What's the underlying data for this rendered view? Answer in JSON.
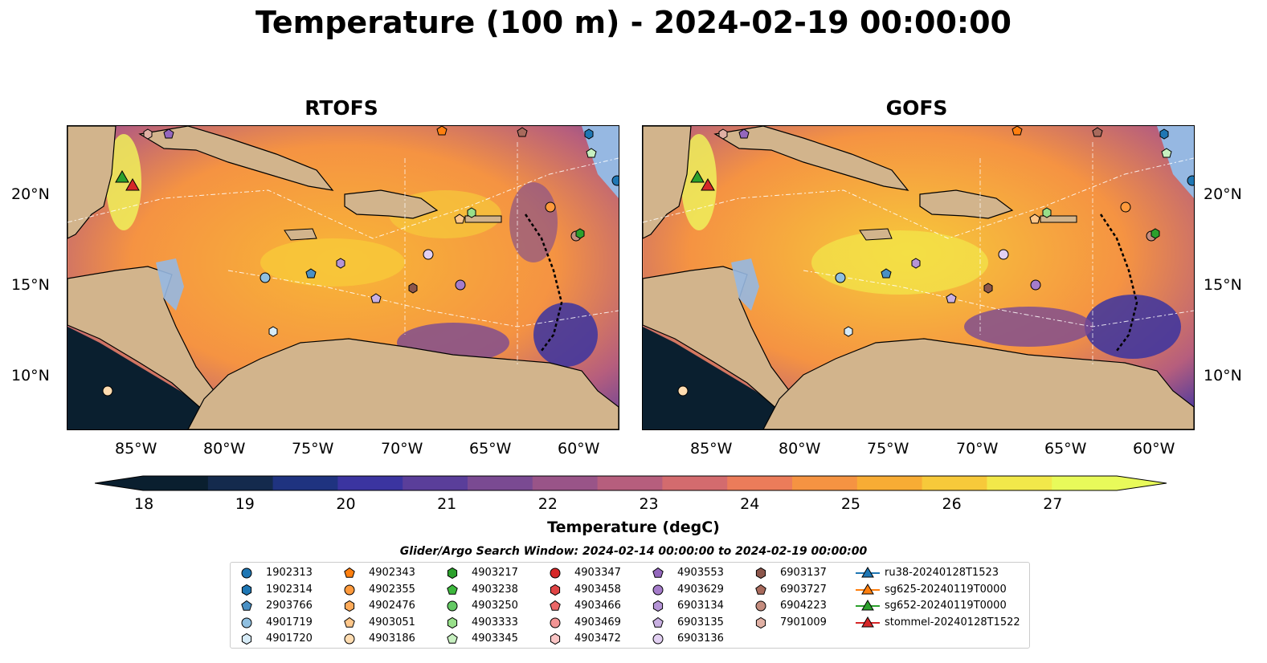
{
  "title": "Temperature (100 m) - 2024-02-19 00:00:00",
  "panels": [
    {
      "name": "RTOFS"
    },
    {
      "name": "GOFS"
    }
  ],
  "lon_ticks": [
    "85°W",
    "80°W",
    "75°W",
    "70°W",
    "65°W",
    "60°W"
  ],
  "lat_ticks": [
    "20°N",
    "15°N",
    "10°N"
  ],
  "colorbar": {
    "label": "Temperature (degC)",
    "ticks": [
      "18",
      "19",
      "20",
      "21",
      "22",
      "23",
      "24",
      "25",
      "26",
      "27"
    ],
    "min": 18,
    "max": 27,
    "extend": "both",
    "colormap": "thermal",
    "colors": [
      "#0a1f2f",
      "#142a4d",
      "#1f3380",
      "#3b34a0",
      "#5a3e9a",
      "#7a4a92",
      "#995488",
      "#b65e7d",
      "#d36b6e",
      "#eb7c5a",
      "#f59342",
      "#f8ac34",
      "#f7c93a",
      "#f2e84a",
      "#e8fa5a"
    ]
  },
  "search_window": "Glider/Argo Search Window: 2024-02-14 00:00:00 to 2024-02-19 00:00:00",
  "legend": {
    "items": [
      {
        "label": "1902313",
        "marker": "circle",
        "color": "#1f77b4"
      },
      {
        "label": "1902314",
        "marker": "hexagon",
        "color": "#1f77b4"
      },
      {
        "label": "2903766",
        "marker": "pentagon",
        "color": "#4a90c4"
      },
      {
        "label": "4901719",
        "marker": "circle",
        "color": "#8fbfe0"
      },
      {
        "label": "4901720",
        "marker": "hexagon",
        "color": "#d6ebf7"
      },
      {
        "label": "4902343",
        "marker": "pentagon",
        "color": "#ff7f0e"
      },
      {
        "label": "4902355",
        "marker": "circle",
        "color": "#ff9a3c"
      },
      {
        "label": "4902476",
        "marker": "hexagon",
        "color": "#ffab5a"
      },
      {
        "label": "4903051",
        "marker": "pentagon",
        "color": "#ffc78a"
      },
      {
        "label": "4903186",
        "marker": "circle",
        "color": "#ffdcb0"
      },
      {
        "label": "4903217",
        "marker": "hexagon",
        "color": "#2ca02c"
      },
      {
        "label": "4903238",
        "marker": "pentagon",
        "color": "#3db83d"
      },
      {
        "label": "4903250",
        "marker": "circle",
        "color": "#63c963"
      },
      {
        "label": "4903333",
        "marker": "hexagon",
        "color": "#98df8a"
      },
      {
        "label": "4903345",
        "marker": "pentagon",
        "color": "#c7f0c0"
      },
      {
        "label": "4903347",
        "marker": "circle",
        "color": "#d62728"
      },
      {
        "label": "4903458",
        "marker": "hexagon",
        "color": "#e04445"
      },
      {
        "label": "4903466",
        "marker": "pentagon",
        "color": "#ea6667"
      },
      {
        "label": "4903469",
        "marker": "circle",
        "color": "#f29494"
      },
      {
        "label": "4903472",
        "marker": "hexagon",
        "color": "#f9c4c4"
      },
      {
        "label": "4903553",
        "marker": "pentagon",
        "color": "#9467bd"
      },
      {
        "label": "4903629",
        "marker": "circle",
        "color": "#a57cca"
      },
      {
        "label": "6903134",
        "marker": "hexagon",
        "color": "#b594d6"
      },
      {
        "label": "6903135",
        "marker": "pentagon",
        "color": "#c9b0e2"
      },
      {
        "label": "6903136",
        "marker": "circle",
        "color": "#e2d0f2"
      },
      {
        "label": "6903137",
        "marker": "hexagon",
        "color": "#8c564b"
      },
      {
        "label": "6903727",
        "marker": "pentagon",
        "color": "#a86a5c"
      },
      {
        "label": "6904223",
        "marker": "circle",
        "color": "#c48c7e"
      },
      {
        "label": "7901009",
        "marker": "hexagon",
        "color": "#e0b0a4"
      },
      {
        "label": "ru38-20240128T1523",
        "marker": "triangle",
        "color": "#1f77b4"
      },
      {
        "label": "sg625-20240119T0000",
        "marker": "triangle",
        "color": "#ff7f0e"
      },
      {
        "label": "sg652-20240119T0000",
        "marker": "triangle",
        "color": "#2ca02c"
      },
      {
        "label": "stommel-20240128T1522",
        "marker": "triangle",
        "color": "#d62728"
      }
    ]
  }
}
